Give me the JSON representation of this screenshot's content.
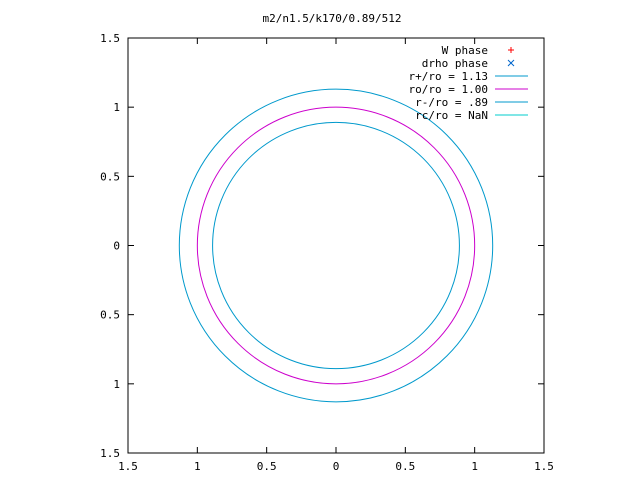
{
  "chart_data": {
    "type": "scatter",
    "title": "m2/n1.5/k170/0.89/512",
    "xlabel": "",
    "ylabel": "",
    "xlim": [
      -1.5,
      1.5
    ],
    "ylim": [
      -1.5,
      1.5
    ],
    "x_ticks": [
      {
        "value": -1.5,
        "label": "1.5"
      },
      {
        "value": -1.0,
        "label": "1"
      },
      {
        "value": -0.5,
        "label": "0.5"
      },
      {
        "value": 0.0,
        "label": "0"
      },
      {
        "value": 0.5,
        "label": "0.5"
      },
      {
        "value": 1.0,
        "label": "1"
      },
      {
        "value": 1.5,
        "label": "1.5"
      }
    ],
    "y_ticks": [
      {
        "value": 1.5,
        "label": "1.5"
      },
      {
        "value": 1.0,
        "label": "1"
      },
      {
        "value": 0.5,
        "label": "0.5"
      },
      {
        "value": 0.0,
        "label": "0"
      },
      {
        "value": -0.5,
        "label": "0.5"
      },
      {
        "value": -1.0,
        "label": "1"
      },
      {
        "value": -1.5,
        "label": "1.5"
      }
    ],
    "grid": false,
    "legend_position": "top-right",
    "series": [
      {
        "name": "W phase",
        "kind": "points",
        "marker": "+",
        "color": "#ff0000",
        "points": []
      },
      {
        "name": "drho phase",
        "kind": "points",
        "marker": "x",
        "color": "#0066cc",
        "points": []
      },
      {
        "name": "r+/ro = 1.13",
        "kind": "circle",
        "radius": 1.13,
        "color": "#0099cc"
      },
      {
        "name": "ro/ro = 1.00",
        "kind": "circle",
        "radius": 1.0,
        "color": "#cc00cc"
      },
      {
        "name": "r-/ro = .89",
        "kind": "circle",
        "radius": 0.89,
        "color": "#0099cc"
      },
      {
        "name": "rc/ro = NaN",
        "kind": "circle",
        "radius": null,
        "color": "#00cccc"
      }
    ]
  }
}
